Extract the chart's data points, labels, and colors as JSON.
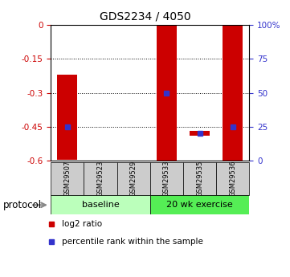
{
  "title": "GDS2234 / 4050",
  "samples": [
    "GSM29507",
    "GSM29523",
    "GSM29529",
    "GSM29533",
    "GSM29535",
    "GSM29536"
  ],
  "log2_ratio_bottom": [
    -0.595,
    -0.6,
    -0.6,
    -0.6,
    -0.49,
    -0.6
  ],
  "log2_ratio_top": [
    -0.22,
    -0.598,
    -0.598,
    0.0,
    -0.47,
    0.0
  ],
  "percentile_rank": [
    25,
    null,
    null,
    50,
    20,
    25
  ],
  "ylim_left": [
    -0.6,
    0.0
  ],
  "yticks_left": [
    0.0,
    -0.15,
    -0.3,
    -0.45,
    -0.6
  ],
  "ytick_labels_left": [
    "0",
    "-0.15",
    "-0.3",
    "-0.45",
    "-0.6"
  ],
  "ylim_right": [
    0,
    100
  ],
  "yticks_right": [
    0,
    25,
    50,
    75,
    100
  ],
  "ytick_labels_right": [
    "0",
    "25",
    "50",
    "75",
    "100%"
  ],
  "bar_color": "#cc0000",
  "blue_color": "#3333cc",
  "label_color_left": "#cc0000",
  "label_color_right": "#3333cc",
  "sample_bg_color": "#cccccc",
  "baseline_color": "#bbffbb",
  "exercise_color": "#55ee55",
  "legend_items": [
    {
      "label": "log2 ratio",
      "color": "#cc0000"
    },
    {
      "label": "percentile rank within the sample",
      "color": "#3333cc"
    }
  ]
}
